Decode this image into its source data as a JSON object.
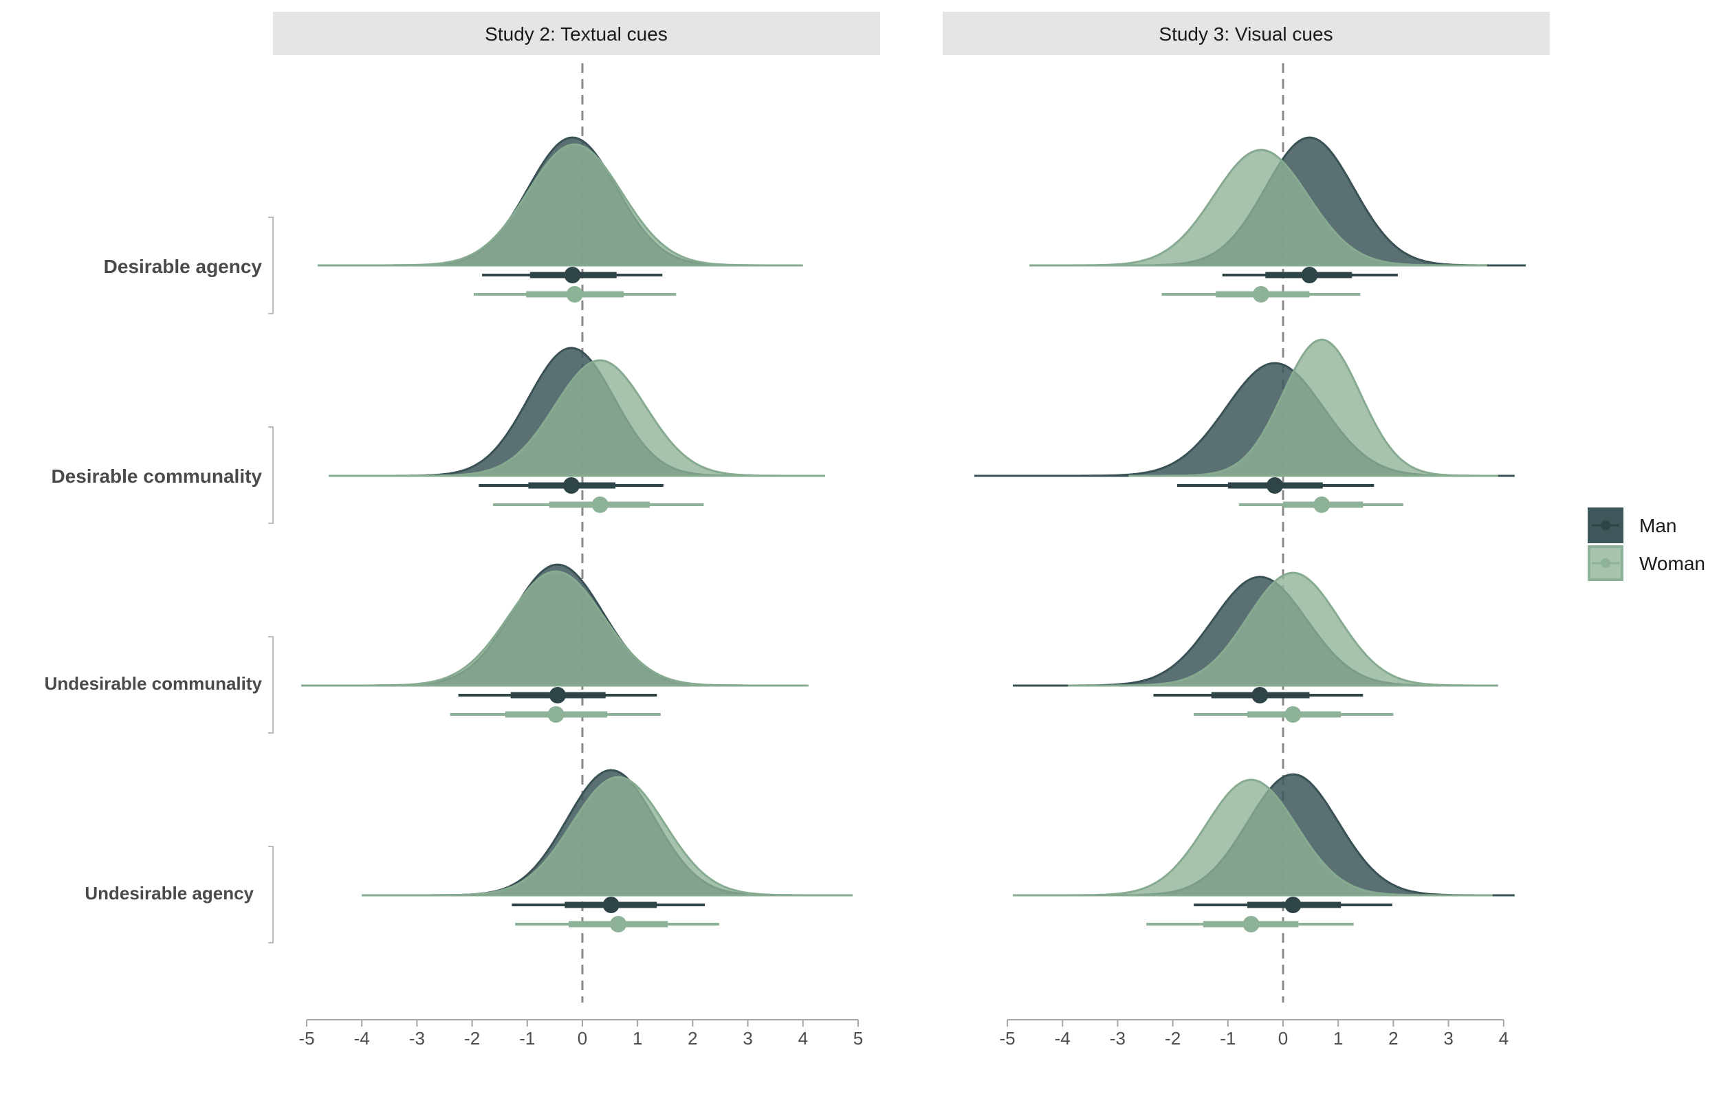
{
  "chart_data": {
    "type": "area",
    "subtype": "half-eye density with point interval",
    "colors": {
      "Man": "#3e575b",
      "Woman": "#8eb297"
    },
    "legend": {
      "entries": [
        "Man",
        "Woman"
      ],
      "placement": "right"
    },
    "reference_line": 0,
    "rows": [
      "Desirable agency",
      "Desirable communality",
      "Undesirable communality",
      "Undesirable agency"
    ],
    "panels": [
      {
        "title": "Study 2: Textual cues",
        "xlim": [
          -5,
          5
        ],
        "ticks": [
          "-5",
          "-4",
          "-3",
          "-2",
          "-1",
          "0",
          "1",
          "2",
          "3",
          "4",
          "5"
        ],
        "series": [
          {
            "row": "Desirable agency",
            "name": "Man",
            "mean": -0.18,
            "sd": 0.8,
            "ci66": [
              -0.95,
              0.62
            ],
            "ci95": [
              -1.82,
              1.45
            ],
            "range": [
              -4.4,
              3.7
            ],
            "peak": 0.93
          },
          {
            "row": "Desirable agency",
            "name": "Woman",
            "mean": -0.14,
            "sd": 0.85,
            "ci66": [
              -1.02,
              0.75
            ],
            "ci95": [
              -1.97,
              1.7
            ],
            "range": [
              -4.8,
              4.0
            ],
            "peak": 0.88
          },
          {
            "row": "Desirable communality",
            "name": "Man",
            "mean": -0.2,
            "sd": 0.78,
            "ci66": [
              -0.98,
              0.6
            ],
            "ci95": [
              -1.88,
              1.47
            ],
            "range": [
              -4.3,
              3.7
            ],
            "peak": 0.93
          },
          {
            "row": "Desirable communality",
            "name": "Woman",
            "mean": 0.32,
            "sd": 0.82,
            "ci66": [
              -0.6,
              1.22
            ],
            "ci95": [
              -1.62,
              2.2
            ],
            "range": [
              -4.6,
              4.4
            ],
            "peak": 0.84
          },
          {
            "row": "Undesirable communality",
            "name": "Man",
            "mean": -0.45,
            "sd": 0.82,
            "ci66": [
              -1.3,
              0.42
            ],
            "ci95": [
              -2.25,
              1.35
            ],
            "range": [
              -4.8,
              3.7
            ],
            "peak": 0.88
          },
          {
            "row": "Undesirable communality",
            "name": "Woman",
            "mean": -0.48,
            "sd": 0.86,
            "ci66": [
              -1.4,
              0.45
            ],
            "ci95": [
              -2.4,
              1.42
            ],
            "range": [
              -5.1,
              4.1
            ],
            "peak": 0.83
          },
          {
            "row": "Undesirable agency",
            "name": "Man",
            "mean": 0.52,
            "sd": 0.8,
            "ci66": [
              -0.32,
              1.35
            ],
            "ci95": [
              -1.28,
              2.22
            ],
            "range": [
              -4.0,
              4.1
            ],
            "peak": 0.91
          },
          {
            "row": "Undesirable agency",
            "name": "Woman",
            "mean": 0.65,
            "sd": 0.84,
            "ci66": [
              -0.25,
              1.55
            ],
            "ci95": [
              -1.22,
              2.48
            ],
            "range": [
              -4.0,
              4.9
            ],
            "peak": 0.86
          }
        ]
      },
      {
        "title": "Study 3: Visual cues",
        "xlim": [
          -5,
          4.4
        ],
        "ticks": [
          "-5",
          "-4",
          "-3",
          "-2",
          "-1",
          "0",
          "1",
          "2",
          "3",
          "4"
        ],
        "series": [
          {
            "row": "Desirable agency",
            "name": "Man",
            "mean": 0.48,
            "sd": 0.8,
            "ci66": [
              -0.32,
              1.25
            ],
            "ci95": [
              -1.1,
              2.08
            ],
            "range": [
              -3.3,
              4.4
            ],
            "peak": 0.93
          },
          {
            "row": "Desirable agency",
            "name": "Woman",
            "mean": -0.4,
            "sd": 0.85,
            "ci66": [
              -1.22,
              0.48
            ],
            "ci95": [
              -2.2,
              1.4
            ],
            "range": [
              -4.6,
              3.7
            ],
            "peak": 0.84
          },
          {
            "row": "Desirable communality",
            "name": "Man",
            "mean": -0.15,
            "sd": 0.88,
            "ci66": [
              -1.0,
              0.72
            ],
            "ci95": [
              -1.92,
              1.65
            ],
            "range": [
              -5.6,
              4.2
            ],
            "peak": 0.82
          },
          {
            "row": "Desirable communality",
            "name": "Woman",
            "mean": 0.7,
            "sd": 0.7,
            "ci66": [
              0.0,
              1.45
            ],
            "ci95": [
              -0.8,
              2.18
            ],
            "range": [
              -2.8,
              3.9
            ],
            "peak": 0.99
          },
          {
            "row": "Undesirable communality",
            "name": "Man",
            "mean": -0.42,
            "sd": 0.85,
            "ci66": [
              -1.3,
              0.48
            ],
            "ci95": [
              -2.35,
              1.45
            ],
            "range": [
              -4.9,
              3.8
            ],
            "peak": 0.79
          },
          {
            "row": "Undesirable communality",
            "name": "Woman",
            "mean": 0.18,
            "sd": 0.82,
            "ci66": [
              -0.65,
              1.05
            ],
            "ci95": [
              -1.62,
              2.0
            ],
            "range": [
              -3.9,
              3.9
            ],
            "peak": 0.82
          },
          {
            "row": "Undesirable agency",
            "name": "Man",
            "mean": 0.18,
            "sd": 0.82,
            "ci66": [
              -0.65,
              1.05
            ],
            "ci95": [
              -1.62,
              1.98
            ],
            "range": [
              -3.8,
              4.2
            ],
            "peak": 0.88
          },
          {
            "row": "Undesirable agency",
            "name": "Woman",
            "mean": -0.58,
            "sd": 0.82,
            "ci66": [
              -1.45,
              0.28
            ],
            "ci95": [
              -2.48,
              1.28
            ],
            "range": [
              -4.9,
              3.8
            ],
            "peak": 0.84
          }
        ]
      }
    ]
  }
}
